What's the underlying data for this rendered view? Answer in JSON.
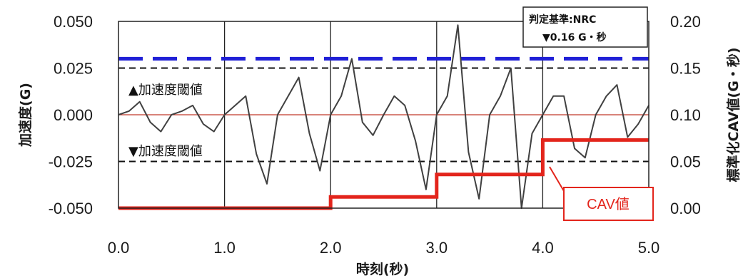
{
  "chart_data": {
    "type": "line",
    "xlabel": "時刻(秒)",
    "ylabel": "加速度(G)",
    "y2label": "標準化CAV値(G・秒)",
    "xlim": [
      0.0,
      5.0
    ],
    "ylim": [
      -0.05,
      0.05
    ],
    "y2lim": [
      0.0,
      0.2
    ],
    "x_ticks": [
      "0.0",
      "1.0",
      "2.0",
      "3.0",
      "4.0",
      "5.0"
    ],
    "y_ticks": [
      "0.050",
      "0.025",
      "0.000",
      "-0.025",
      "-0.050"
    ],
    "y2_ticks": [
      "0.20",
      "0.15",
      "0.10",
      "0.05",
      "0.00"
    ],
    "grid": "vertical lines at each second",
    "acceleration": {
      "color": "#404040",
      "x": [
        0.0,
        0.1,
        0.2,
        0.3,
        0.4,
        0.5,
        0.6,
        0.7,
        0.8,
        0.9,
        1.0,
        1.1,
        1.2,
        1.3,
        1.4,
        1.5,
        1.6,
        1.7,
        1.8,
        1.9,
        2.0,
        2.1,
        2.2,
        2.3,
        2.4,
        2.5,
        2.6,
        2.7,
        2.8,
        2.9,
        3.0,
        3.1,
        3.2,
        3.3,
        3.4,
        3.5,
        3.6,
        3.7,
        3.8,
        3.9,
        4.0,
        4.1,
        4.2,
        4.3,
        4.4,
        4.5,
        4.6,
        4.7,
        4.8,
        4.9,
        5.0
      ],
      "y": [
        0.0,
        0.002,
        0.007,
        -0.004,
        -0.009,
        0.0,
        0.002,
        0.005,
        -0.005,
        -0.009,
        0.0,
        0.005,
        0.01,
        -0.021,
        -0.037,
        0.0,
        0.01,
        0.02,
        -0.01,
        -0.03,
        0.0,
        0.01,
        0.03,
        -0.004,
        -0.011,
        0.0,
        0.01,
        0.005,
        -0.014,
        -0.04,
        0.0,
        0.01,
        0.048,
        -0.02,
        -0.045,
        0.0,
        0.01,
        0.025,
        -0.05,
        -0.01,
        0.0,
        0.01,
        0.01,
        -0.018,
        -0.023,
        0.0,
        0.01,
        0.016,
        -0.012,
        -0.005,
        0.005
      ]
    },
    "zero_line_color": "#c0392b",
    "thresholds": {
      "upper": 0.025,
      "lower": -0.025,
      "upper_label": "▲加速度閾値",
      "lower_label": "▼加速度閾値",
      "color": "#111111"
    },
    "criterion": {
      "value": 0.16,
      "axis": "right",
      "color": "#1f1fd6",
      "legend_title": "判定基準:NRC",
      "legend_value": "▼0.16 G・秒"
    },
    "cav": {
      "label": "CAV値",
      "color": "#e3251c",
      "x": [
        0.0,
        2.0,
        2.0,
        3.0,
        3.0,
        4.0,
        4.0,
        5.0
      ],
      "y": [
        0.0,
        0.0,
        0.012,
        0.012,
        0.036,
        0.036,
        0.073,
        0.073
      ]
    }
  }
}
